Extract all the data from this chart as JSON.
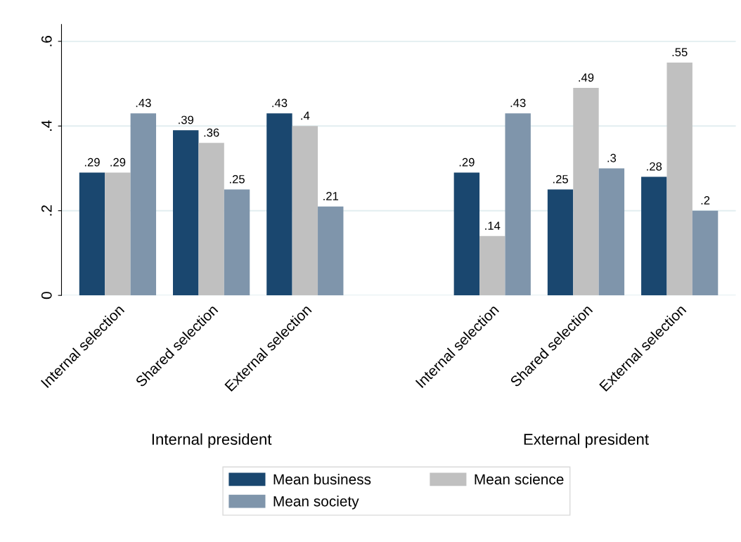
{
  "chart_data": {
    "type": "bar",
    "categories": [
      "Internal selection",
      "Shared selection",
      "External selection",
      null,
      "Internal selection",
      "Shared selection",
      "External selection"
    ],
    "series": [
      {
        "name": "Mean business",
        "color": "#1a476f",
        "values": [
          0.29,
          0.39,
          0.43,
          null,
          0.29,
          0.25,
          0.28
        ],
        "value_labels": [
          ".29",
          ".39",
          ".43",
          null,
          ".29",
          ".25",
          ".28"
        ]
      },
      {
        "name": "Mean science",
        "color": "#c0c0c0",
        "values": [
          0.29,
          0.36,
          0.4,
          null,
          0.14,
          0.49,
          0.55
        ],
        "value_labels": [
          ".29",
          ".36",
          ".4",
          null,
          ".14",
          ".49",
          ".55"
        ]
      },
      {
        "name": "Mean society",
        "color": "#7f95ab",
        "values": [
          0.43,
          0.25,
          0.21,
          null,
          0.43,
          0.3,
          0.2
        ],
        "value_labels": [
          ".43",
          ".25",
          ".21",
          null,
          ".43",
          ".3",
          ".2"
        ]
      }
    ],
    "annotations": [
      "Internal president",
      "External president"
    ],
    "ylim": [
      0,
      0.64
    ],
    "yticks": [
      0,
      {
        "value": 0.2,
        "label": ".2"
      },
      {
        "value": 0.4,
        "label": ".4"
      },
      {
        "value": 0.6,
        "label": ".6"
      }
    ],
    "grid": "y",
    "legend": "bottom"
  }
}
